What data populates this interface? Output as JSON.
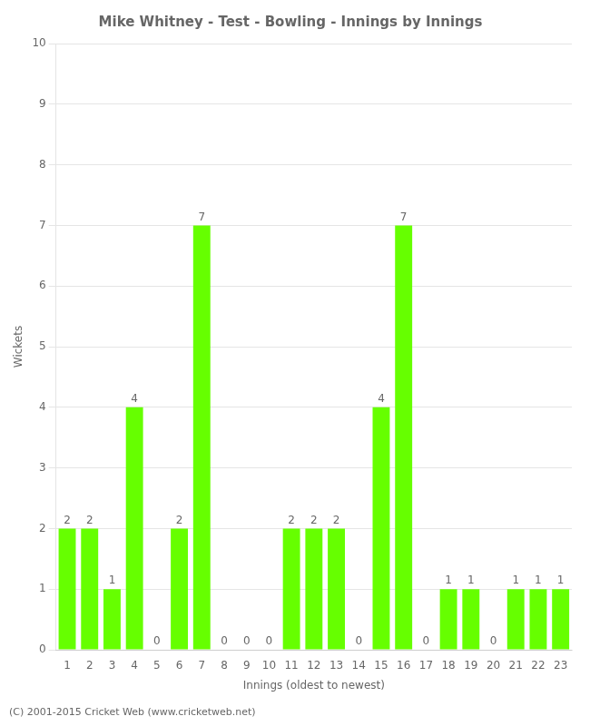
{
  "chart_data": {
    "type": "bar",
    "title": "Mike Whitney - Test - Bowling - Innings by Innings",
    "xlabel": "Innings (oldest to newest)",
    "ylabel": "Wickets",
    "categories": [
      "1",
      "2",
      "3",
      "4",
      "5",
      "6",
      "7",
      "8",
      "9",
      "10",
      "11",
      "12",
      "13",
      "14",
      "15",
      "16",
      "17",
      "18",
      "19",
      "20",
      "21",
      "22",
      "23"
    ],
    "values": [
      2,
      2,
      1,
      4,
      0,
      2,
      7,
      0,
      0,
      0,
      2,
      2,
      2,
      0,
      4,
      7,
      0,
      1,
      1,
      0,
      1,
      1,
      1
    ],
    "color": "#66ff00",
    "ylim": [
      0,
      10
    ],
    "yticks": [
      0,
      1,
      2,
      3,
      4,
      5,
      6,
      7,
      8,
      9,
      10
    ],
    "grid": true,
    "data_labels": true,
    "annotations": [
      "(C) 2001-2015 Cricket Web (www.cricketweb.net)"
    ]
  }
}
